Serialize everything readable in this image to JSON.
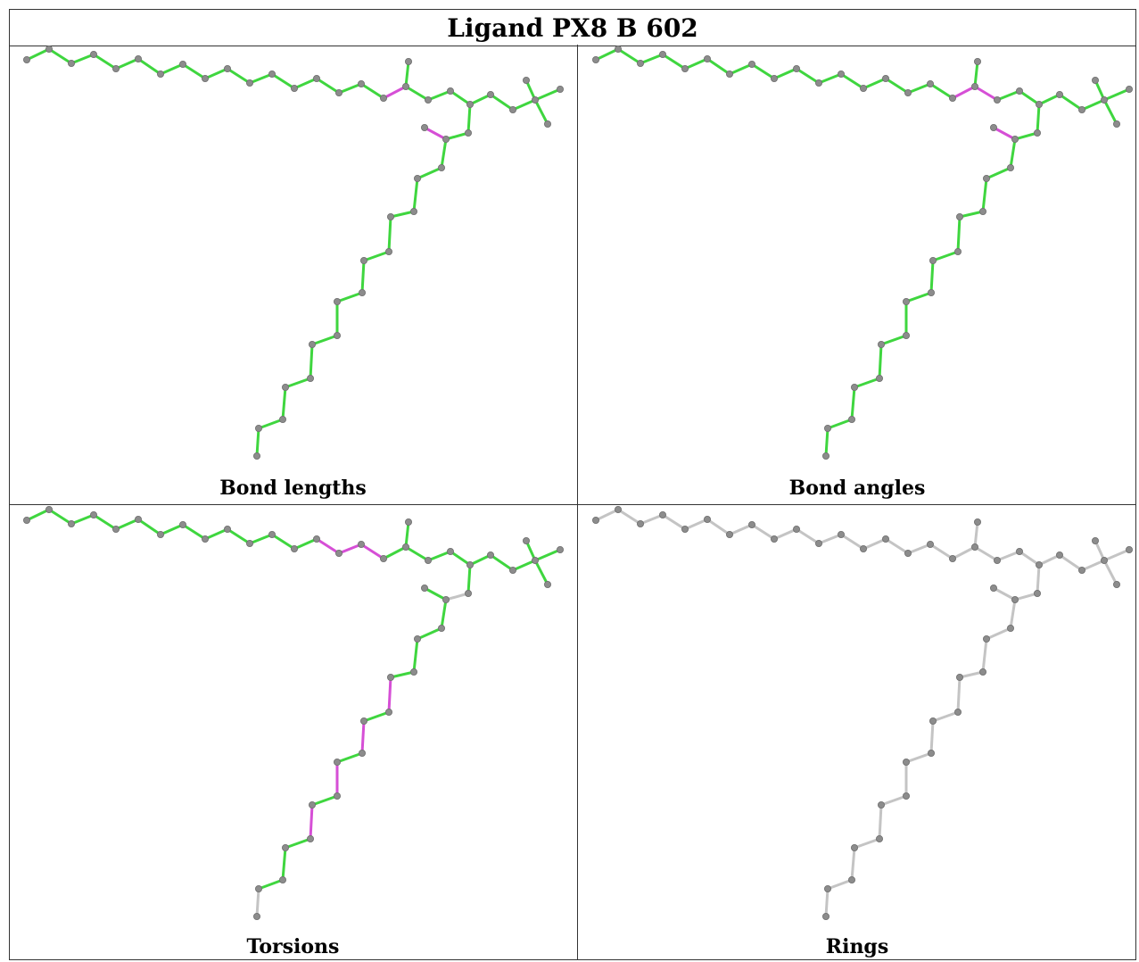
{
  "title": "Ligand PX8 B 602",
  "colors": {
    "ok": "#3fd63f",
    "outlier": "#d64fd6",
    "neutral": "#c4c4c4",
    "atom": "#8c8c8c"
  },
  "panels": [
    {
      "id": "bond-lengths",
      "caption": "Bond lengths",
      "outliers": [
        [
          16,
          17
        ],
        [
          26,
          27
        ]
      ],
      "grey": []
    },
    {
      "id": "bond-angles",
      "caption": "Bond angles",
      "outliers": [
        [
          16,
          17
        ],
        [
          17,
          18
        ],
        [
          26,
          27
        ],
        [
          27,
          28
        ]
      ],
      "grey": []
    },
    {
      "id": "torsions",
      "caption": "Torsions",
      "outliers": [
        [
          13,
          14
        ],
        [
          14,
          15
        ],
        [
          15,
          16
        ],
        [
          31,
          32
        ],
        [
          33,
          34
        ],
        [
          35,
          36
        ],
        [
          37,
          38
        ]
      ],
      "grey": [
        [
          25,
          26
        ],
        [
          41,
          42
        ]
      ]
    },
    {
      "id": "rings",
      "caption": "Rings",
      "outliers": [],
      "grey": "all"
    }
  ]
}
